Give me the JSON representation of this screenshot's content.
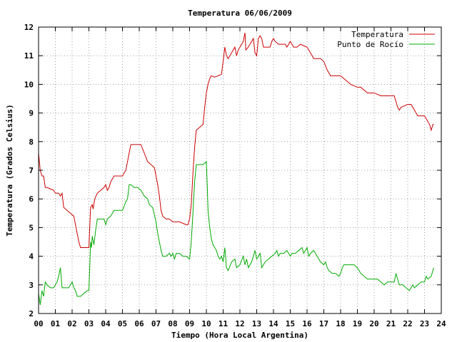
{
  "chart_data": {
    "type": "line",
    "title": "Temperatura 06/06/2009",
    "xlabel": "Tiempo (Hora Local Argentina)",
    "ylabel": "Temperatura (Grados Celsius)",
    "xlim": [
      0,
      24
    ],
    "ylim": [
      2,
      12
    ],
    "grid": true,
    "legend_position": "top-right",
    "x_ticks": [
      "00",
      "01",
      "02",
      "03",
      "04",
      "05",
      "06",
      "07",
      "08",
      "09",
      "10",
      "11",
      "12",
      "13",
      "14",
      "15",
      "16",
      "17",
      "18",
      "19",
      "20",
      "21",
      "22",
      "23",
      "24"
    ],
    "y_ticks": [
      "2",
      "3",
      "4",
      "5",
      "6",
      "7",
      "8",
      "9",
      "10",
      "11",
      "12"
    ],
    "series": [
      {
        "name": "Temperatura",
        "color": "#cc0000",
        "points": [
          [
            0.0,
            7.6
          ],
          [
            0.1,
            7.0
          ],
          [
            0.2,
            6.8
          ],
          [
            0.3,
            6.8
          ],
          [
            0.4,
            6.4
          ],
          [
            0.5,
            6.4
          ],
          [
            0.7,
            6.35
          ],
          [
            0.9,
            6.3
          ],
          [
            1.0,
            6.2
          ],
          [
            1.2,
            6.2
          ],
          [
            1.3,
            6.1
          ],
          [
            1.4,
            6.2
          ],
          [
            1.5,
            5.7
          ],
          [
            1.7,
            5.6
          ],
          [
            1.9,
            5.5
          ],
          [
            2.1,
            5.4
          ],
          [
            2.2,
            5.1
          ],
          [
            2.3,
            4.8
          ],
          [
            2.4,
            4.5
          ],
          [
            2.5,
            4.3
          ],
          [
            2.7,
            4.3
          ],
          [
            2.9,
            4.3
          ],
          [
            3.0,
            4.3
          ],
          [
            3.05,
            5.0
          ],
          [
            3.1,
            5.7
          ],
          [
            3.2,
            5.8
          ],
          [
            3.25,
            5.65
          ],
          [
            3.35,
            6.0
          ],
          [
            3.5,
            6.2
          ],
          [
            3.7,
            6.3
          ],
          [
            3.9,
            6.4
          ],
          [
            4.0,
            6.5
          ],
          [
            4.1,
            6.3
          ],
          [
            4.2,
            6.4
          ],
          [
            4.3,
            6.6
          ],
          [
            4.5,
            6.8
          ],
          [
            4.7,
            6.8
          ],
          [
            4.9,
            6.8
          ],
          [
            5.0,
            6.8
          ],
          [
            5.2,
            7.0
          ],
          [
            5.3,
            7.3
          ],
          [
            5.4,
            7.6
          ],
          [
            5.5,
            7.9
          ],
          [
            5.7,
            7.9
          ],
          [
            5.9,
            7.9
          ],
          [
            6.1,
            7.9
          ],
          [
            6.3,
            7.6
          ],
          [
            6.5,
            7.3
          ],
          [
            6.7,
            7.2
          ],
          [
            6.9,
            7.1
          ],
          [
            7.0,
            6.8
          ],
          [
            7.1,
            6.5
          ],
          [
            7.2,
            6.1
          ],
          [
            7.3,
            5.6
          ],
          [
            7.4,
            5.4
          ],
          [
            7.6,
            5.3
          ],
          [
            7.8,
            5.3
          ],
          [
            8.0,
            5.2
          ],
          [
            8.2,
            5.2
          ],
          [
            8.4,
            5.2
          ],
          [
            8.6,
            5.15
          ],
          [
            8.8,
            5.1
          ],
          [
            8.9,
            5.1
          ],
          [
            9.0,
            5.3
          ],
          [
            9.1,
            5.8
          ],
          [
            9.2,
            6.9
          ],
          [
            9.3,
            7.8
          ],
          [
            9.4,
            8.4
          ],
          [
            9.6,
            8.5
          ],
          [
            9.8,
            8.6
          ],
          [
            9.9,
            9.2
          ],
          [
            10.0,
            9.7
          ],
          [
            10.1,
            10.0
          ],
          [
            10.2,
            10.2
          ],
          [
            10.3,
            10.3
          ],
          [
            10.5,
            10.25
          ],
          [
            10.7,
            10.3
          ],
          [
            10.9,
            10.35
          ],
          [
            11.0,
            10.8
          ],
          [
            11.1,
            11.3
          ],
          [
            11.2,
            11.0
          ],
          [
            11.3,
            10.9
          ],
          [
            11.5,
            11.1
          ],
          [
            11.7,
            11.3
          ],
          [
            11.8,
            11.0
          ],
          [
            11.9,
            11.2
          ],
          [
            12.1,
            11.4
          ],
          [
            12.2,
            11.5
          ],
          [
            12.3,
            11.8
          ],
          [
            12.35,
            11.2
          ],
          [
            12.5,
            11.3
          ],
          [
            12.7,
            11.5
          ],
          [
            12.8,
            11.6
          ],
          [
            12.9,
            11.1
          ],
          [
            13.0,
            11.0
          ],
          [
            13.1,
            11.6
          ],
          [
            13.2,
            11.7
          ],
          [
            13.3,
            11.6
          ],
          [
            13.4,
            11.3
          ],
          [
            13.6,
            11.3
          ],
          [
            13.8,
            11.3
          ],
          [
            13.9,
            11.5
          ],
          [
            14.0,
            11.6
          ],
          [
            14.1,
            11.5
          ],
          [
            14.3,
            11.4
          ],
          [
            14.5,
            11.4
          ],
          [
            14.7,
            11.4
          ],
          [
            14.8,
            11.3
          ],
          [
            15.0,
            11.5
          ],
          [
            15.2,
            11.3
          ],
          [
            15.4,
            11.3
          ],
          [
            15.6,
            11.4
          ],
          [
            15.8,
            11.35
          ],
          [
            16.0,
            11.3
          ],
          [
            16.2,
            11.1
          ],
          [
            16.4,
            10.9
          ],
          [
            16.6,
            10.9
          ],
          [
            16.8,
            10.9
          ],
          [
            17.0,
            10.8
          ],
          [
            17.2,
            10.5
          ],
          [
            17.4,
            10.3
          ],
          [
            17.6,
            10.3
          ],
          [
            17.8,
            10.3
          ],
          [
            18.0,
            10.3
          ],
          [
            18.2,
            10.2
          ],
          [
            18.4,
            10.1
          ],
          [
            18.6,
            10.0
          ],
          [
            18.8,
            9.95
          ],
          [
            19.0,
            9.9
          ],
          [
            19.2,
            9.9
          ],
          [
            19.4,
            9.8
          ],
          [
            19.6,
            9.7
          ],
          [
            19.8,
            9.7
          ],
          [
            20.0,
            9.7
          ],
          [
            20.2,
            9.65
          ],
          [
            20.4,
            9.6
          ],
          [
            20.6,
            9.6
          ],
          [
            20.8,
            9.6
          ],
          [
            21.0,
            9.6
          ],
          [
            21.2,
            9.6
          ],
          [
            21.3,
            9.4
          ],
          [
            21.4,
            9.2
          ],
          [
            21.5,
            9.1
          ],
          [
            21.6,
            9.2
          ],
          [
            21.8,
            9.25
          ],
          [
            22.0,
            9.3
          ],
          [
            22.2,
            9.3
          ],
          [
            22.3,
            9.2
          ],
          [
            22.5,
            9.0
          ],
          [
            22.6,
            8.9
          ],
          [
            22.8,
            8.9
          ],
          [
            23.0,
            8.9
          ],
          [
            23.2,
            8.7
          ],
          [
            23.3,
            8.6
          ],
          [
            23.4,
            8.4
          ],
          [
            23.5,
            8.6
          ],
          [
            23.55,
            8.6
          ]
        ]
      },
      {
        "name": "Punto de Rocío",
        "color": "#00aa00",
        "points": [
          [
            0.0,
            2.7
          ],
          [
            0.1,
            2.3
          ],
          [
            0.2,
            2.8
          ],
          [
            0.3,
            2.6
          ],
          [
            0.4,
            3.1
          ],
          [
            0.5,
            3.0
          ],
          [
            0.7,
            2.9
          ],
          [
            0.9,
            2.9
          ],
          [
            1.0,
            3.0
          ],
          [
            1.1,
            3.1
          ],
          [
            1.2,
            3.3
          ],
          [
            1.3,
            3.6
          ],
          [
            1.4,
            2.9
          ],
          [
            1.6,
            2.9
          ],
          [
            1.8,
            2.9
          ],
          [
            2.0,
            3.1
          ],
          [
            2.1,
            2.9
          ],
          [
            2.2,
            2.8
          ],
          [
            2.3,
            2.6
          ],
          [
            2.4,
            2.6
          ],
          [
            2.5,
            2.6
          ],
          [
            2.7,
            2.7
          ],
          [
            2.9,
            2.8
          ],
          [
            3.0,
            2.8
          ],
          [
            3.05,
            3.6
          ],
          [
            3.1,
            4.5
          ],
          [
            3.15,
            4.3
          ],
          [
            3.2,
            4.7
          ],
          [
            3.3,
            4.4
          ],
          [
            3.4,
            4.9
          ],
          [
            3.5,
            5.3
          ],
          [
            3.7,
            5.3
          ],
          [
            3.9,
            5.3
          ],
          [
            4.0,
            5.1
          ],
          [
            4.1,
            5.3
          ],
          [
            4.3,
            5.4
          ],
          [
            4.5,
            5.6
          ],
          [
            4.7,
            5.6
          ],
          [
            4.9,
            5.6
          ],
          [
            5.0,
            5.6
          ],
          [
            5.2,
            5.9
          ],
          [
            5.3,
            6.0
          ],
          [
            5.4,
            6.5
          ],
          [
            5.5,
            6.5
          ],
          [
            5.7,
            6.4
          ],
          [
            5.9,
            6.4
          ],
          [
            6.1,
            6.3
          ],
          [
            6.3,
            6.1
          ],
          [
            6.5,
            6.0
          ],
          [
            6.6,
            5.8
          ],
          [
            6.8,
            5.7
          ],
          [
            7.0,
            5.2
          ],
          [
            7.1,
            4.8
          ],
          [
            7.2,
            4.5
          ],
          [
            7.3,
            4.2
          ],
          [
            7.4,
            4.0
          ],
          [
            7.6,
            4.0
          ],
          [
            7.8,
            4.1
          ],
          [
            7.9,
            4.0
          ],
          [
            8.0,
            4.1
          ],
          [
            8.1,
            3.9
          ],
          [
            8.2,
            4.1
          ],
          [
            8.4,
            4.1
          ],
          [
            8.6,
            4.0
          ],
          [
            8.8,
            4.0
          ],
          [
            9.0,
            3.9
          ],
          [
            9.1,
            4.5
          ],
          [
            9.2,
            5.5
          ],
          [
            9.3,
            6.6
          ],
          [
            9.4,
            7.2
          ],
          [
            9.6,
            7.2
          ],
          [
            9.8,
            7.2
          ],
          [
            10.0,
            7.3
          ],
          [
            10.05,
            6.5
          ],
          [
            10.1,
            5.6
          ],
          [
            10.2,
            5.0
          ],
          [
            10.3,
            4.6
          ],
          [
            10.4,
            4.4
          ],
          [
            10.6,
            4.2
          ],
          [
            10.7,
            4.0
          ],
          [
            10.8,
            3.9
          ],
          [
            10.9,
            4.0
          ],
          [
            11.0,
            3.8
          ],
          [
            11.1,
            4.3
          ],
          [
            11.2,
            3.6
          ],
          [
            11.3,
            3.5
          ],
          [
            11.5,
            3.8
          ],
          [
            11.7,
            3.9
          ],
          [
            11.8,
            3.6
          ],
          [
            12.0,
            3.7
          ],
          [
            12.2,
            4.0
          ],
          [
            12.3,
            3.7
          ],
          [
            12.4,
            3.9
          ],
          [
            12.5,
            3.6
          ],
          [
            12.7,
            3.8
          ],
          [
            12.9,
            4.2
          ],
          [
            13.0,
            3.9
          ],
          [
            13.2,
            4.1
          ],
          [
            13.3,
            3.6
          ],
          [
            13.5,
            3.8
          ],
          [
            13.7,
            3.9
          ],
          [
            13.9,
            4.0
          ],
          [
            14.1,
            4.1
          ],
          [
            14.2,
            4.2
          ],
          [
            14.3,
            4.0
          ],
          [
            14.4,
            4.1
          ],
          [
            14.6,
            4.1
          ],
          [
            14.8,
            4.2
          ],
          [
            15.0,
            4.0
          ],
          [
            15.1,
            4.1
          ],
          [
            15.3,
            4.1
          ],
          [
            15.5,
            4.2
          ],
          [
            15.7,
            4.3
          ],
          [
            15.8,
            4.1
          ],
          [
            16.0,
            4.3
          ],
          [
            16.1,
            4.0
          ],
          [
            16.2,
            4.1
          ],
          [
            16.4,
            4.2
          ],
          [
            16.6,
            4.0
          ],
          [
            16.8,
            3.8
          ],
          [
            17.0,
            3.7
          ],
          [
            17.1,
            3.8
          ],
          [
            17.2,
            3.6
          ],
          [
            17.3,
            3.5
          ],
          [
            17.5,
            3.4
          ],
          [
            17.7,
            3.4
          ],
          [
            17.9,
            3.3
          ],
          [
            18.0,
            3.4
          ],
          [
            18.1,
            3.6
          ],
          [
            18.2,
            3.7
          ],
          [
            18.4,
            3.7
          ],
          [
            18.6,
            3.7
          ],
          [
            18.8,
            3.7
          ],
          [
            19.0,
            3.6
          ],
          [
            19.2,
            3.4
          ],
          [
            19.4,
            3.3
          ],
          [
            19.6,
            3.2
          ],
          [
            19.8,
            3.2
          ],
          [
            20.0,
            3.2
          ],
          [
            20.2,
            3.2
          ],
          [
            20.4,
            3.1
          ],
          [
            20.6,
            3.0
          ],
          [
            20.8,
            3.1
          ],
          [
            21.0,
            3.1
          ],
          [
            21.2,
            3.1
          ],
          [
            21.3,
            3.4
          ],
          [
            21.4,
            3.2
          ],
          [
            21.5,
            3.0
          ],
          [
            21.7,
            3.0
          ],
          [
            21.9,
            2.9
          ],
          [
            22.1,
            2.8
          ],
          [
            22.3,
            3.0
          ],
          [
            22.4,
            2.9
          ],
          [
            22.6,
            3.0
          ],
          [
            22.8,
            3.1
          ],
          [
            23.0,
            3.1
          ],
          [
            23.1,
            3.3
          ],
          [
            23.2,
            3.2
          ],
          [
            23.4,
            3.3
          ],
          [
            23.55,
            3.6
          ]
        ]
      }
    ]
  }
}
